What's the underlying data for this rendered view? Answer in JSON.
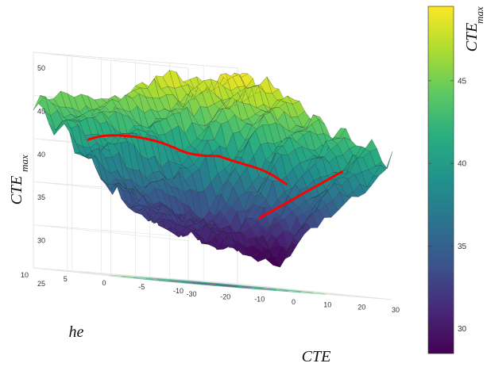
{
  "chart_data": {
    "type": "surface3d",
    "zlabel": {
      "main": "CTE",
      "sub": "max"
    },
    "xlabel": "he",
    "ylabel": "CTE",
    "colorbar_label": {
      "main": "CTE",
      "sub": "max"
    },
    "he_ticks": [
      "10",
      "5",
      "0",
      "-5",
      "-10"
    ],
    "cte_ticks": [
      "-30",
      "-20",
      "-10",
      "0",
      "10",
      "20",
      "30"
    ],
    "z_ticks": [
      "25",
      "30",
      "35",
      "40",
      "45",
      "50"
    ],
    "colorbar_ticks": [
      "30",
      "35",
      "40",
      "45"
    ],
    "he_range": [
      -10,
      10
    ],
    "cte_range": [
      -30,
      30
    ],
    "z_range": [
      25,
      50
    ],
    "colorbar_range": [
      28.5,
      49.5
    ],
    "colormap": [
      "#440154",
      "#472878",
      "#3b528b",
      "#2c728e",
      "#21918c",
      "#28ae80",
      "#5ec962",
      "#addc30",
      "#fde725"
    ],
    "max_path_color": "#ff0000",
    "grid": true,
    "approx_surface": {
      "rows_he": [
        10,
        5,
        0,
        -5,
        -10
      ],
      "cols_cte": [
        -30,
        -15,
        0,
        15,
        30
      ],
      "z": [
        [
          44,
          45,
          47,
          48,
          49
        ],
        [
          40,
          41,
          41,
          46,
          48
        ],
        [
          35,
          32,
          31,
          42,
          45
        ],
        [
          33,
          31,
          30,
          38,
          43
        ],
        [
          32,
          30,
          29,
          36,
          41
        ]
      ]
    }
  }
}
